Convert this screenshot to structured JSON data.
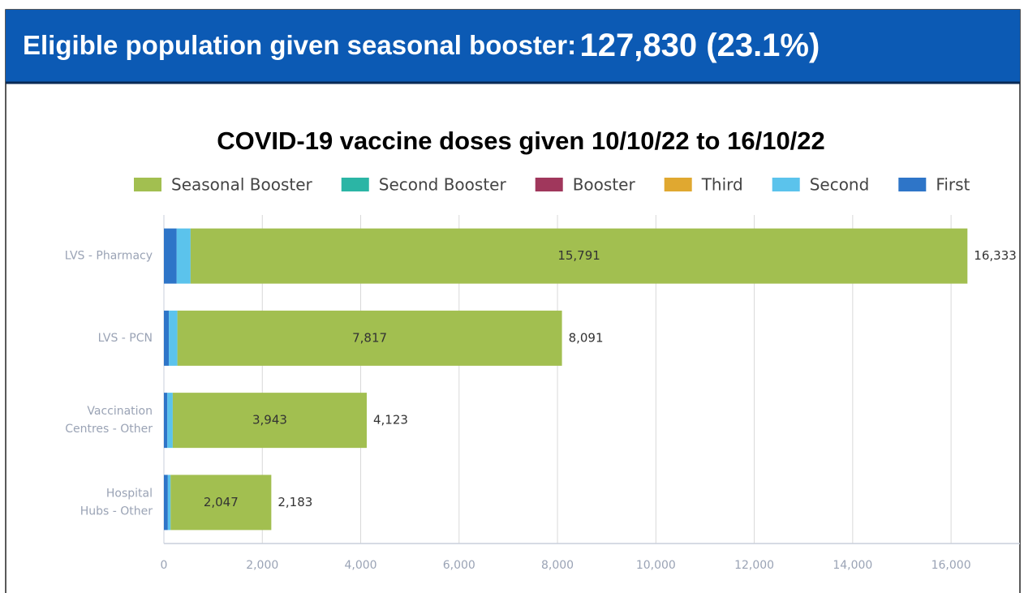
{
  "header": {
    "label": "Eligible population given seasonal booster:",
    "value": "127,830 (23.1%)"
  },
  "chart_data": {
    "type": "stacked_hbar",
    "title": "COVID-19 vaccine doses given 10/10/22 to 16/10/22",
    "categories": [
      "LVS - Pharmacy",
      "LVS - PCN",
      "Vaccination Centres - Other",
      "Hospital Hubs - Other"
    ],
    "series": [
      {
        "name": "Seasonal Booster",
        "color": "#a2bf50",
        "values": [
          15791,
          7817,
          3943,
          2047
        ],
        "value_labels": [
          "15,791",
          "7,817",
          "3,943",
          "2,047"
        ]
      },
      {
        "name": "Second Booster",
        "color": "#2bb5a5",
        "values": [
          0,
          0,
          0,
          0
        ]
      },
      {
        "name": "Booster",
        "color": "#a0375c",
        "values": [
          0,
          0,
          0,
          0
        ]
      },
      {
        "name": "Third",
        "color": "#e0a830",
        "values": [
          0,
          0,
          0,
          0
        ]
      },
      {
        "name": "Second",
        "color": "#5bc3ec",
        "values": [
          282,
          174,
          110,
          56
        ]
      },
      {
        "name": "First",
        "color": "#2e75c8",
        "values": [
          260,
          100,
          70,
          80
        ]
      }
    ],
    "totals": [
      16333,
      8091,
      4123,
      2183
    ],
    "total_labels": [
      "16,333",
      "8,091",
      "4,123",
      "2,183"
    ],
    "xlim": [
      0,
      17400
    ],
    "xticks": [
      0,
      {
        "value": 2000,
        "label": "2,000"
      },
      {
        "value": 4000,
        "label": "4,000"
      },
      {
        "value": 6000,
        "label": "6,000"
      },
      {
        "value": 8000,
        "label": "8,000"
      },
      {
        "value": 10000,
        "label": "10,000"
      },
      {
        "value": 12000,
        "label": "12,000"
      },
      {
        "value": 14000,
        "label": "14,000"
      },
      {
        "value": 16000,
        "label": "16,000"
      }
    ],
    "grid": true,
    "legend": "top"
  }
}
